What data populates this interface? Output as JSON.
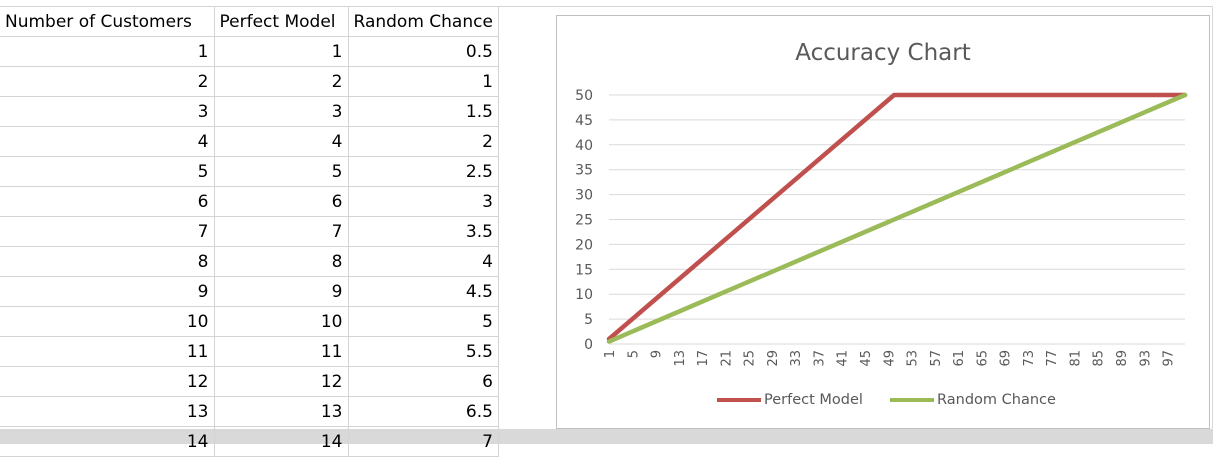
{
  "sheet": {
    "headers": [
      "Number of Customers",
      "Perfect Model",
      "Random Chance"
    ],
    "rows": [
      [
        "1",
        "1",
        "0.5"
      ],
      [
        "2",
        "2",
        "1"
      ],
      [
        "3",
        "3",
        "1.5"
      ],
      [
        "4",
        "4",
        "2"
      ],
      [
        "5",
        "5",
        "2.5"
      ],
      [
        "6",
        "6",
        "3"
      ],
      [
        "7",
        "7",
        "3.5"
      ],
      [
        "8",
        "8",
        "4"
      ],
      [
        "9",
        "9",
        "4.5"
      ],
      [
        "10",
        "10",
        "5"
      ],
      [
        "11",
        "11",
        "5.5"
      ],
      [
        "12",
        "12",
        "6"
      ],
      [
        "13",
        "13",
        "6.5"
      ],
      [
        "14",
        "14",
        "7"
      ]
    ]
  },
  "chart_data": {
    "type": "line",
    "title": "Accuracy Chart",
    "xlabel": "",
    "ylabel": "",
    "x_tick_labels": [
      "1",
      "5",
      "9",
      "13",
      "17",
      "21",
      "25",
      "29",
      "33",
      "37",
      "41",
      "45",
      "49",
      "53",
      "57",
      "61",
      "65",
      "69",
      "73",
      "77",
      "81",
      "85",
      "89",
      "93",
      "97"
    ],
    "y_tick_labels": [
      "0",
      "5",
      "10",
      "15",
      "20",
      "25",
      "30",
      "35",
      "40",
      "45",
      "50"
    ],
    "xlim": [
      1,
      100
    ],
    "ylim": [
      0,
      50
    ],
    "grid": true,
    "legend_position": "bottom",
    "series": [
      {
        "name": "Perfect Model",
        "color": "#c0504d",
        "x": [
          1,
          50,
          100
        ],
        "y": [
          1,
          50,
          50
        ]
      },
      {
        "name": "Random Chance",
        "color": "#9bbb59",
        "x": [
          1,
          100
        ],
        "y": [
          0.5,
          50
        ]
      }
    ]
  }
}
